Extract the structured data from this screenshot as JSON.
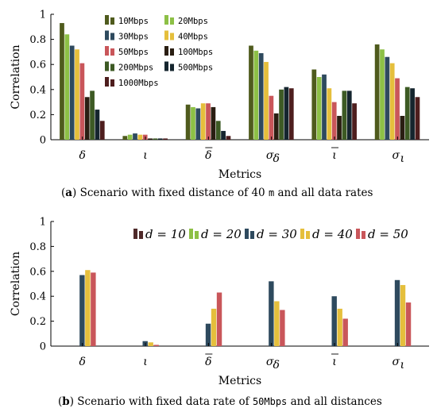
{
  "chart_data": [
    {
      "type": "bar",
      "caption_label": "a",
      "caption_text": "Scenario with fixed distance of 40",
      "caption_code": "m",
      "caption_tail": "and all data rates",
      "xlabel": "Metrics",
      "ylabel": "Correlation",
      "ylim": [
        0,
        1
      ],
      "yticks": [
        "0",
        "0.2",
        "0.4",
        "0.6",
        "0.8",
        "1"
      ],
      "legend_placement": "top-left",
      "legend_style": "mono",
      "categories": [
        "δ",
        "ι",
        "δ̄",
        "σδ",
        "ῑ",
        "σι"
      ],
      "series": [
        {
          "name": "10Mbps",
          "color": "#4f5b1d",
          "values": [
            0.93,
            0.03,
            0.28,
            0.75,
            0.56,
            0.76
          ]
        },
        {
          "name": "20Mbps",
          "color": "#8dc046",
          "values": [
            0.84,
            0.04,
            0.26,
            0.71,
            0.5,
            0.72
          ]
        },
        {
          "name": "30Mbps",
          "color": "#2e4a5e",
          "values": [
            0.75,
            0.05,
            0.25,
            0.69,
            0.52,
            0.66
          ]
        },
        {
          "name": "40Mbps",
          "color": "#e5bf3c",
          "values": [
            0.72,
            0.04,
            0.29,
            0.62,
            0.41,
            0.61
          ]
        },
        {
          "name": "50Mbps",
          "color": "#c9565a",
          "values": [
            0.61,
            0.04,
            0.29,
            0.35,
            0.3,
            0.49
          ]
        },
        {
          "name": "100Mbps",
          "color": "#2a1e12",
          "values": [
            0.34,
            0.01,
            0.26,
            0.21,
            0.19,
            0.19
          ]
        },
        {
          "name": "200Mbps",
          "color": "#3d5a24",
          "values": [
            0.39,
            0.01,
            0.15,
            0.4,
            0.39,
            0.42
          ]
        },
        {
          "name": "500Mbps",
          "color": "#15252e",
          "values": [
            0.24,
            0.01,
            0.07,
            0.42,
            0.39,
            0.41
          ]
        },
        {
          "name": "1000Mbps",
          "color": "#4e1e1e",
          "values": [
            0.15,
            0.01,
            0.03,
            0.41,
            0.29,
            0.34
          ]
        }
      ]
    },
    {
      "type": "bar",
      "caption_label": "b",
      "caption_text": "Scenario with fixed data rate of",
      "caption_code": "50Mbps",
      "caption_tail": "and all distances",
      "xlabel": "Metrics",
      "ylabel": "Correlation",
      "ylim": [
        0,
        1
      ],
      "yticks": [
        "0",
        "0.2",
        "0.4",
        "0.6",
        "0.8",
        "1"
      ],
      "legend_placement": "top",
      "legend_style": "math",
      "categories": [
        "δ",
        "ι",
        "δ̄",
        "σδ",
        "ῑ",
        "σι"
      ],
      "series": [
        {
          "name": "d = 10",
          "color": "#4f2a2a",
          "values": [
            0.0,
            0.0,
            0.0,
            0.0,
            0.0,
            0.0
          ]
        },
        {
          "name": "d = 20",
          "color": "#8dc046",
          "values": [
            0.0,
            0.0,
            0.0,
            0.0,
            0.0,
            0.0
          ]
        },
        {
          "name": "d = 30",
          "color": "#2e4a5e",
          "values": [
            0.57,
            0.04,
            0.18,
            0.52,
            0.4,
            0.53
          ]
        },
        {
          "name": "d = 40",
          "color": "#e5bf3c",
          "values": [
            0.61,
            0.03,
            0.3,
            0.36,
            0.3,
            0.49
          ]
        },
        {
          "name": "d = 50",
          "color": "#c9565a",
          "values": [
            0.59,
            0.01,
            0.43,
            0.29,
            0.22,
            0.35
          ]
        }
      ]
    }
  ]
}
